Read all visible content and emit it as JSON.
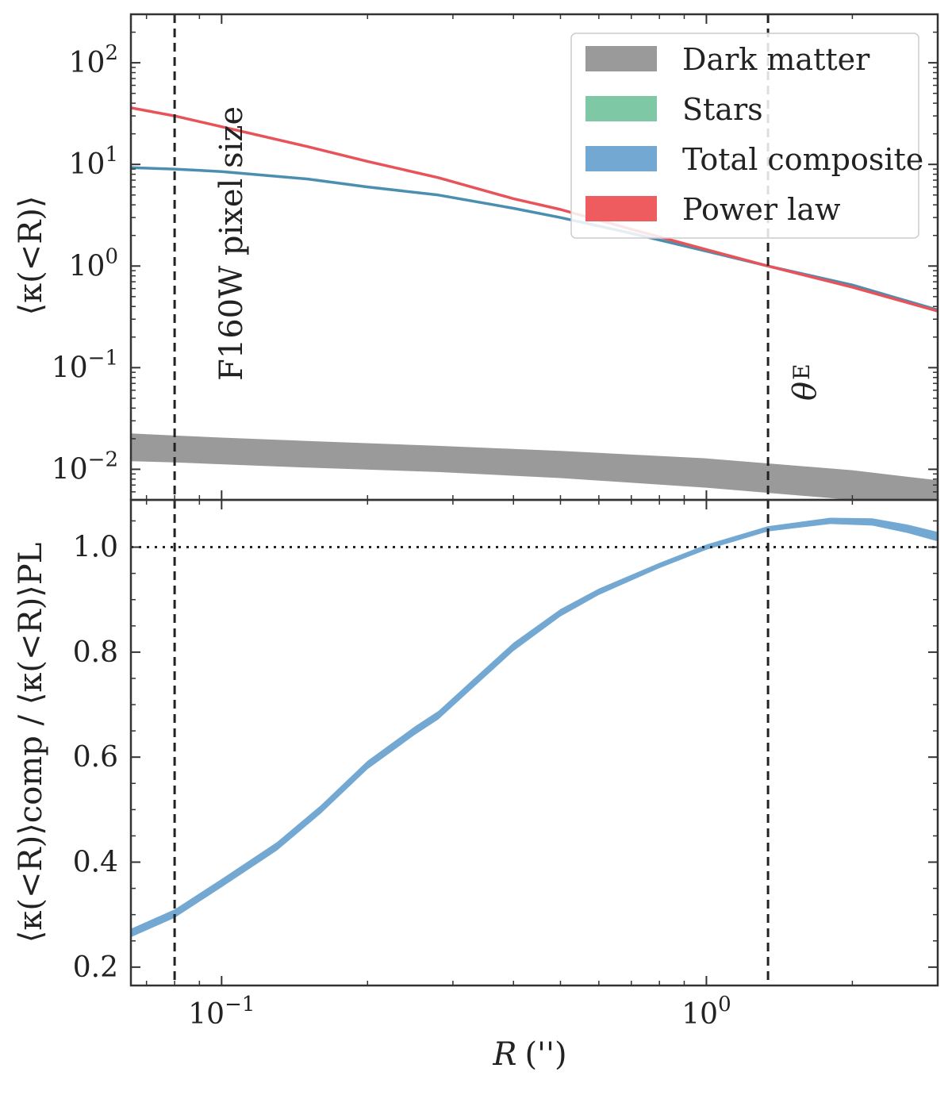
{
  "chart_data": [
    {
      "type": "line",
      "panel": "top",
      "xlabel": "",
      "ylabel": "⟨κ(<R)⟩",
      "x_scale": "log",
      "y_scale": "log",
      "xlim": [
        0.065,
        3.0
      ],
      "ylim": [
        0.005,
        300
      ],
      "yticks": [
        {
          "value": 0.01,
          "base": "10",
          "exp": "−2"
        },
        {
          "value": 0.1,
          "base": "10",
          "exp": "−1"
        },
        {
          "value": 1,
          "base": "10",
          "exp": "0"
        },
        {
          "value": 10,
          "base": "10",
          "exp": "1"
        },
        {
          "value": 100,
          "base": "10",
          "exp": "2"
        }
      ],
      "legend": {
        "position": "top-right",
        "entries": [
          {
            "label": "Dark matter",
            "color": "#9a9a9a"
          },
          {
            "label": "Stars",
            "color": "#7ec8a6"
          },
          {
            "label": "Total composite",
            "color": "#73a8d2"
          },
          {
            "label": "Power law",
            "color": "#ee5c60"
          }
        ]
      },
      "bands": [
        {
          "name": "Dark matter",
          "color": "#9a9a9a",
          "x": [
            0.065,
            0.08,
            0.1,
            0.15,
            0.28,
            0.5,
            1.0,
            2.0,
            3.0
          ],
          "upper": [
            0.0225,
            0.0215,
            0.0205,
            0.019,
            0.017,
            0.0152,
            0.0128,
            0.0098,
            0.0078
          ],
          "lower": [
            0.012,
            0.0117,
            0.0112,
            0.0104,
            0.0094,
            0.0082,
            0.0066,
            0.005,
            0.0042
          ]
        }
      ],
      "series": [
        {
          "name": "Total composite",
          "color": "#4a8fb0",
          "x": [
            0.065,
            0.08,
            0.1,
            0.15,
            0.2,
            0.28,
            0.4,
            0.5,
            0.7,
            1.0,
            1.34,
            2.0,
            3.0
          ],
          "y": [
            9.3,
            9.0,
            8.5,
            7.2,
            6.0,
            5.0,
            3.7,
            3.0,
            2.1,
            1.4,
            1.0,
            0.65,
            0.37
          ]
        },
        {
          "name": "Power law",
          "color": "#e8535a",
          "x": [
            0.065,
            0.08,
            0.1,
            0.15,
            0.2,
            0.28,
            0.4,
            0.5,
            0.7,
            1.0,
            1.34,
            2.0,
            3.0
          ],
          "y": [
            36,
            30,
            23.5,
            15.0,
            10.7,
            7.4,
            4.6,
            3.6,
            2.3,
            1.45,
            1.0,
            0.62,
            0.36
          ]
        }
      ],
      "vlines": [
        {
          "x": 0.08,
          "label": "F160W pixel size"
        },
        {
          "x": 1.34,
          "label_symbol": "θ",
          "label_sub": "E"
        }
      ]
    },
    {
      "type": "line",
      "panel": "bottom",
      "xlabel_symbol": "R",
      "xlabel_unit": "('')",
      "ylabel": "⟨κ(<R)⟩comp / ⟨κ(<R)⟩PL",
      "x_scale": "log",
      "y_scale": "linear",
      "xlim": [
        0.065,
        3.0
      ],
      "ylim": [
        0.165,
        1.09
      ],
      "xticks": [
        {
          "value": 0.1,
          "base": "10",
          "exp": "−1"
        },
        {
          "value": 1,
          "base": "10",
          "exp": "0"
        }
      ],
      "yticks": [
        "0.2",
        "0.4",
        "0.6",
        "0.8",
        "1.0"
      ],
      "hline": {
        "y": 1.0,
        "style": "dotted"
      },
      "series": [
        {
          "name": "Total composite",
          "color": "#73a8d2",
          "x": [
            0.065,
            0.08,
            0.1,
            0.13,
            0.16,
            0.2,
            0.25,
            0.28,
            0.33,
            0.4,
            0.5,
            0.6,
            0.8,
            1.0,
            1.34,
            1.8,
            2.2,
            2.6,
            3.0
          ],
          "y": [
            0.265,
            0.302,
            0.36,
            0.43,
            0.5,
            0.585,
            0.65,
            0.68,
            0.74,
            0.81,
            0.875,
            0.915,
            0.965,
            1.0,
            1.035,
            1.05,
            1.048,
            1.035,
            1.02
          ],
          "width": [
            0.016,
            0.016,
            0.016,
            0.016,
            0.016,
            0.016,
            0.016,
            0.016,
            0.016,
            0.016,
            0.014,
            0.012,
            0.01,
            0.01,
            0.01,
            0.012,
            0.014,
            0.016,
            0.018
          ]
        }
      ],
      "vlines": [
        {
          "x": 0.08
        },
        {
          "x": 1.34
        }
      ]
    }
  ]
}
